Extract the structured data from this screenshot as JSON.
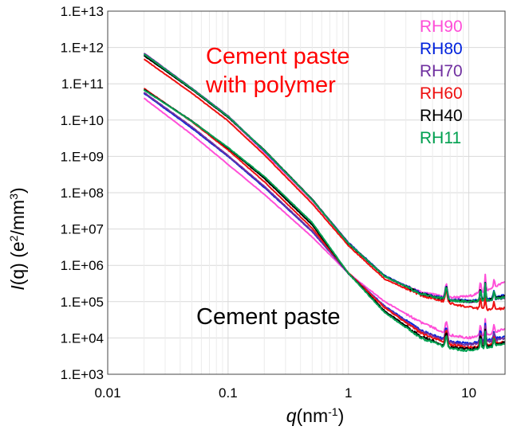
{
  "chart_data": {
    "type": "line",
    "x_scale": "log",
    "y_scale": "log",
    "xlim": [
      0.01,
      20
    ],
    "ylim": [
      1000,
      10000000000000
    ],
    "grid": true,
    "legend_position": "top-right",
    "x_ticks": [
      {
        "value": 0.01,
        "label": "0.01"
      },
      {
        "value": 0.1,
        "label": "0.1"
      },
      {
        "value": 1,
        "label": "1"
      },
      {
        "value": 10,
        "label": "10"
      }
    ],
    "y_ticks": [
      {
        "value": 1000,
        "label": "1.E+03"
      },
      {
        "value": 10000,
        "label": "1.E+04"
      },
      {
        "value": 100000,
        "label": "1.E+05"
      },
      {
        "value": 1000000,
        "label": "1.E+06"
      },
      {
        "value": 10000000,
        "label": "1.E+07"
      },
      {
        "value": 100000000,
        "label": "1.E+08"
      },
      {
        "value": 1000000000,
        "label": "1.E+09"
      },
      {
        "value": 10000000000,
        "label": "1.E+10"
      },
      {
        "value": 100000000000,
        "label": "1.E+11"
      },
      {
        "value": 1000000000000,
        "label": "1.E+12"
      },
      {
        "value": 10000000000000,
        "label": "1.E+13"
      }
    ],
    "xlabel": {
      "main": "q",
      "unit": "(nm",
      "sup": "-1",
      "close": ")"
    },
    "ylabel": {
      "main": "I",
      "arg": "(q)",
      "unit": " (e",
      "sup1": "2",
      "mid": "/mm",
      "sup2": "3",
      "close": ")"
    },
    "annotations": [
      {
        "id": "polymer_line1",
        "text": "Cement paste",
        "color": "#ff0000"
      },
      {
        "id": "polymer_line2",
        "text": "with polymer",
        "color": "#ff0000"
      },
      {
        "id": "plain",
        "text": "Cement  paste",
        "color": "#000000"
      }
    ],
    "legend": [
      {
        "label": "RH90",
        "color": "#ff4fd8"
      },
      {
        "label": "RH80",
        "color": "#0022dd"
      },
      {
        "label": "RH70",
        "color": "#7030a0"
      },
      {
        "label": "RH60",
        "color": "#ee1111"
      },
      {
        "label": "RH40",
        "color": "#000000"
      },
      {
        "label": "RH11",
        "color": "#00a050"
      }
    ],
    "groups": [
      {
        "group": "Cement paste with polymer",
        "series": [
          {
            "label": "RH90",
            "color": "#ff4fd8",
            "points": [
              [
                0.02,
                650000000000.0
              ],
              [
                0.05,
                70000000000.0
              ],
              [
                0.1,
                12000000000.0
              ],
              [
                0.2,
                1300000000.0
              ],
              [
                0.5,
                60000000.0
              ],
              [
                1,
                4000000.0
              ],
              [
                2,
                500000.0
              ],
              [
                4,
                180000.0
              ],
              [
                7,
                130000.0
              ],
              [
                10,
                140000.0
              ],
              [
                15,
                220000.0
              ],
              [
                20,
                350000.0
              ]
            ]
          },
          {
            "label": "RH80",
            "color": "#0022dd",
            "points": [
              [
                0.02,
                620000000000.0
              ],
              [
                0.05,
                72000000000.0
              ],
              [
                0.1,
                12500000000.0
              ],
              [
                0.2,
                1400000000.0
              ],
              [
                0.5,
                65000000.0
              ],
              [
                1,
                4200000.0
              ],
              [
                2,
                520000.0
              ],
              [
                4,
                170000.0
              ],
              [
                7,
                115000.0
              ],
              [
                10,
                105000.0
              ],
              [
                15,
                120000.0
              ],
              [
                20,
                150000.0
              ]
            ]
          },
          {
            "label": "RH70",
            "color": "#7030a0",
            "points": [
              [
                0.02,
                700000000000.0
              ],
              [
                0.05,
                75000000000.0
              ],
              [
                0.1,
                13000000000.0
              ],
              [
                0.2,
                1450000000.0
              ],
              [
                0.5,
                66000000.0
              ],
              [
                1,
                4100000.0
              ],
              [
                2,
                500000.0
              ],
              [
                4,
                160000.0
              ],
              [
                7,
                110000.0
              ],
              [
                10,
                100000.0
              ],
              [
                15,
                110000.0
              ],
              [
                20,
                130000.0
              ]
            ]
          },
          {
            "label": "RH60",
            "color": "#ee1111",
            "points": [
              [
                0.02,
                480000000000.0
              ],
              [
                0.05,
                55000000000.0
              ],
              [
                0.1,
                9500000000.0
              ],
              [
                0.2,
                1100000000.0
              ],
              [
                0.5,
                50000000.0
              ],
              [
                1,
                3500000.0
              ],
              [
                2,
                420000.0
              ],
              [
                4,
                150000.0
              ],
              [
                7,
                90000.0
              ],
              [
                10,
                70000.0
              ],
              [
                15,
                60000.0
              ],
              [
                20,
                65000.0
              ]
            ]
          },
          {
            "label": "RH40",
            "color": "#000000",
            "points": [
              [
                0.02,
                600000000000.0
              ],
              [
                0.05,
                70000000000.0
              ],
              [
                0.1,
                12000000000.0
              ],
              [
                0.2,
                1500000000.0
              ],
              [
                0.5,
                65000000.0
              ],
              [
                1,
                4000000.0
              ],
              [
                2,
                500000.0
              ],
              [
                4,
                165000.0
              ],
              [
                7,
                110000.0
              ],
              [
                10,
                100000.0
              ],
              [
                15,
                115000.0
              ],
              [
                20,
                140000.0
              ]
            ]
          },
          {
            "label": "RH11",
            "color": "#00a050",
            "points": [
              [
                0.02,
                660000000000.0
              ],
              [
                0.05,
                73000000000.0
              ],
              [
                0.1,
                12500000000.0
              ],
              [
                0.2,
                1450000000.0
              ],
              [
                0.5,
                64000000.0
              ],
              [
                1,
                4000000.0
              ],
              [
                2,
                500000.0
              ],
              [
                4,
                165000.0
              ],
              [
                7,
                110000.0
              ],
              [
                10,
                100000.0
              ],
              [
                15,
                110000.0
              ],
              [
                20,
                130000.0
              ]
            ]
          }
        ]
      },
      {
        "group": "Cement paste",
        "series": [
          {
            "label": "RH90",
            "color": "#ff4fd8",
            "points": [
              [
                0.02,
                40000000000.0
              ],
              [
                0.05,
                4000000000.0
              ],
              [
                0.1,
                600000000.0
              ],
              [
                0.2,
                90000000.0
              ],
              [
                0.5,
                6000000.0
              ],
              [
                1,
                600000.0
              ],
              [
                2,
                100000.0
              ],
              [
                4,
                27000.0
              ],
              [
                7,
                12000.0
              ],
              [
                10,
                10000.0
              ],
              [
                15,
                13000.0
              ],
              [
                20,
                18000.0
              ]
            ]
          },
          {
            "label": "RH80",
            "color": "#0022dd",
            "points": [
              [
                0.02,
                55000000000.0
              ],
              [
                0.05,
                6000000000.0
              ],
              [
                0.1,
                1000000000.0
              ],
              [
                0.2,
                140000000.0
              ],
              [
                0.5,
                8500000.0
              ],
              [
                1,
                600000.0
              ],
              [
                2,
                75000.0
              ],
              [
                4,
                16000.0
              ],
              [
                7,
                8000.0
              ],
              [
                10,
                7000.0
              ],
              [
                15,
                9000.0
              ],
              [
                20,
                11000.0
              ]
            ]
          },
          {
            "label": "RH70",
            "color": "#7030a0",
            "points": [
              [
                0.02,
                58000000000.0
              ],
              [
                0.05,
                6500000000.0
              ],
              [
                0.1,
                1050000000.0
              ],
              [
                0.2,
                150000000.0
              ],
              [
                0.5,
                8800000.0
              ],
              [
                1,
                600000.0
              ],
              [
                2,
                73000.0
              ],
              [
                4,
                15000.0
              ],
              [
                7,
                7500.0
              ],
              [
                10,
                6500.0
              ],
              [
                15,
                8000.0
              ],
              [
                20,
                10000.0
              ]
            ]
          },
          {
            "label": "RH60",
            "color": "#ee1111",
            "points": [
              [
                0.02,
                75000000000.0
              ],
              [
                0.05,
                9000000000.0
              ],
              [
                0.1,
                1500000000.0
              ],
              [
                0.2,
                200000000.0
              ],
              [
                0.5,
                10500000.0
              ],
              [
                1,
                620000.0
              ],
              [
                2,
                68000.0
              ],
              [
                4,
                13500.0
              ],
              [
                7,
                6500.0
              ],
              [
                10,
                5500.0
              ],
              [
                15,
                6500.0
              ],
              [
                20,
                8000.0
              ]
            ]
          },
          {
            "label": "RH40",
            "color": "#000000",
            "points": [
              [
                0.02,
                70000000000.0
              ],
              [
                0.05,
                9500000000.0
              ],
              [
                0.1,
                1700000000.0
              ],
              [
                0.2,
                250000000.0
              ],
              [
                0.5,
                13000000.0
              ],
              [
                1,
                600000.0
              ],
              [
                2,
                55000.0
              ],
              [
                4,
                11000.0
              ],
              [
                7,
                5500.0
              ],
              [
                10,
                5000.0
              ],
              [
                15,
                6000.0
              ],
              [
                20,
                7500.0
              ]
            ]
          },
          {
            "label": "RH11",
            "color": "#00a050",
            "points": [
              [
                0.02,
                68000000000.0
              ],
              [
                0.05,
                9300000000.0
              ],
              [
                0.1,
                1750000000.0
              ],
              [
                0.2,
                280000000.0
              ],
              [
                0.5,
                15000000.0
              ],
              [
                1,
                600000.0
              ],
              [
                2,
                50000.0
              ],
              [
                4,
                10000.0
              ],
              [
                7,
                5000.0
              ],
              [
                10,
                4500.0
              ],
              [
                15,
                5500.0
              ],
              [
                20,
                7000.0
              ]
            ]
          }
        ]
      }
    ]
  }
}
